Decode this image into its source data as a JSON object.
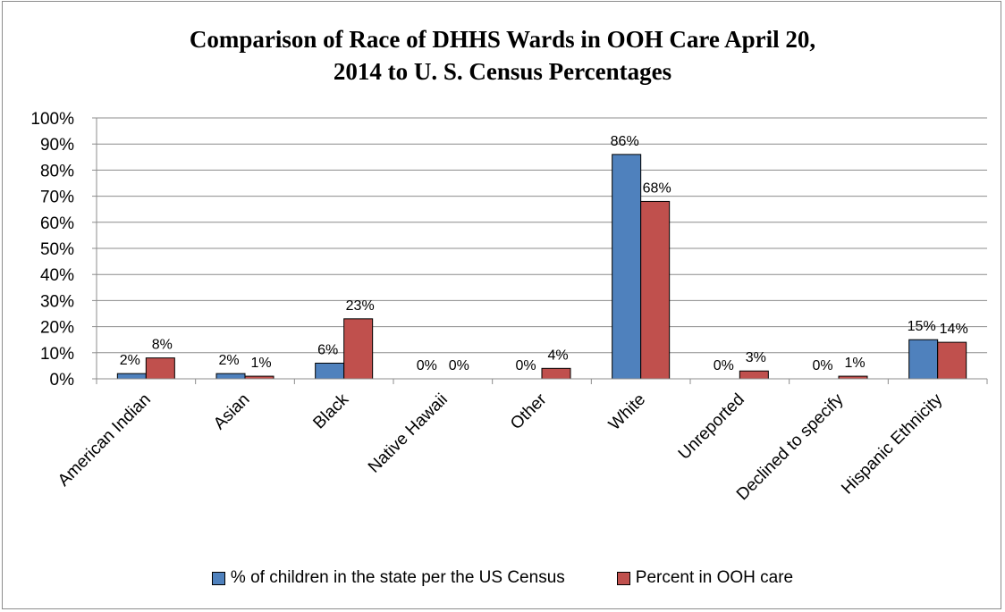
{
  "chart_data": {
    "type": "bar",
    "title_line1": "Comparison of Race of DHHS Wards in OOH Care April 20,",
    "title_line2": "2014 to U. S. Census Percentages",
    "categories": [
      "American Indian",
      "Asian",
      "Black",
      "Native Hawaii",
      "Other",
      "White",
      "Unreported",
      "Declined to specify",
      "Hispanic Ethnicity"
    ],
    "series": [
      {
        "name": "% of children in the state per the US Census",
        "values": [
          2,
          2,
          6,
          0,
          0,
          86,
          0,
          0,
          15
        ],
        "labels": [
          "2%",
          "2%",
          "6%",
          "0%",
          "0%",
          "86%",
          "0%",
          "0%",
          "15%"
        ],
        "color": "#4f81bd"
      },
      {
        "name": "Percent in OOH care",
        "values": [
          8,
          1,
          23,
          0,
          4,
          68,
          3,
          1,
          14
        ],
        "labels": [
          "8%",
          "1%",
          "23%",
          "0%",
          "4%",
          "68%",
          "3%",
          "1%",
          "14%"
        ],
        "color": "#c0504d"
      }
    ],
    "yticks": [
      "0%",
      "10%",
      "20%",
      "30%",
      "40%",
      "50%",
      "60%",
      "70%",
      "80%",
      "90%",
      "100%"
    ],
    "ylim": [
      0,
      100
    ],
    "grid": true,
    "legend_position": "bottom"
  }
}
